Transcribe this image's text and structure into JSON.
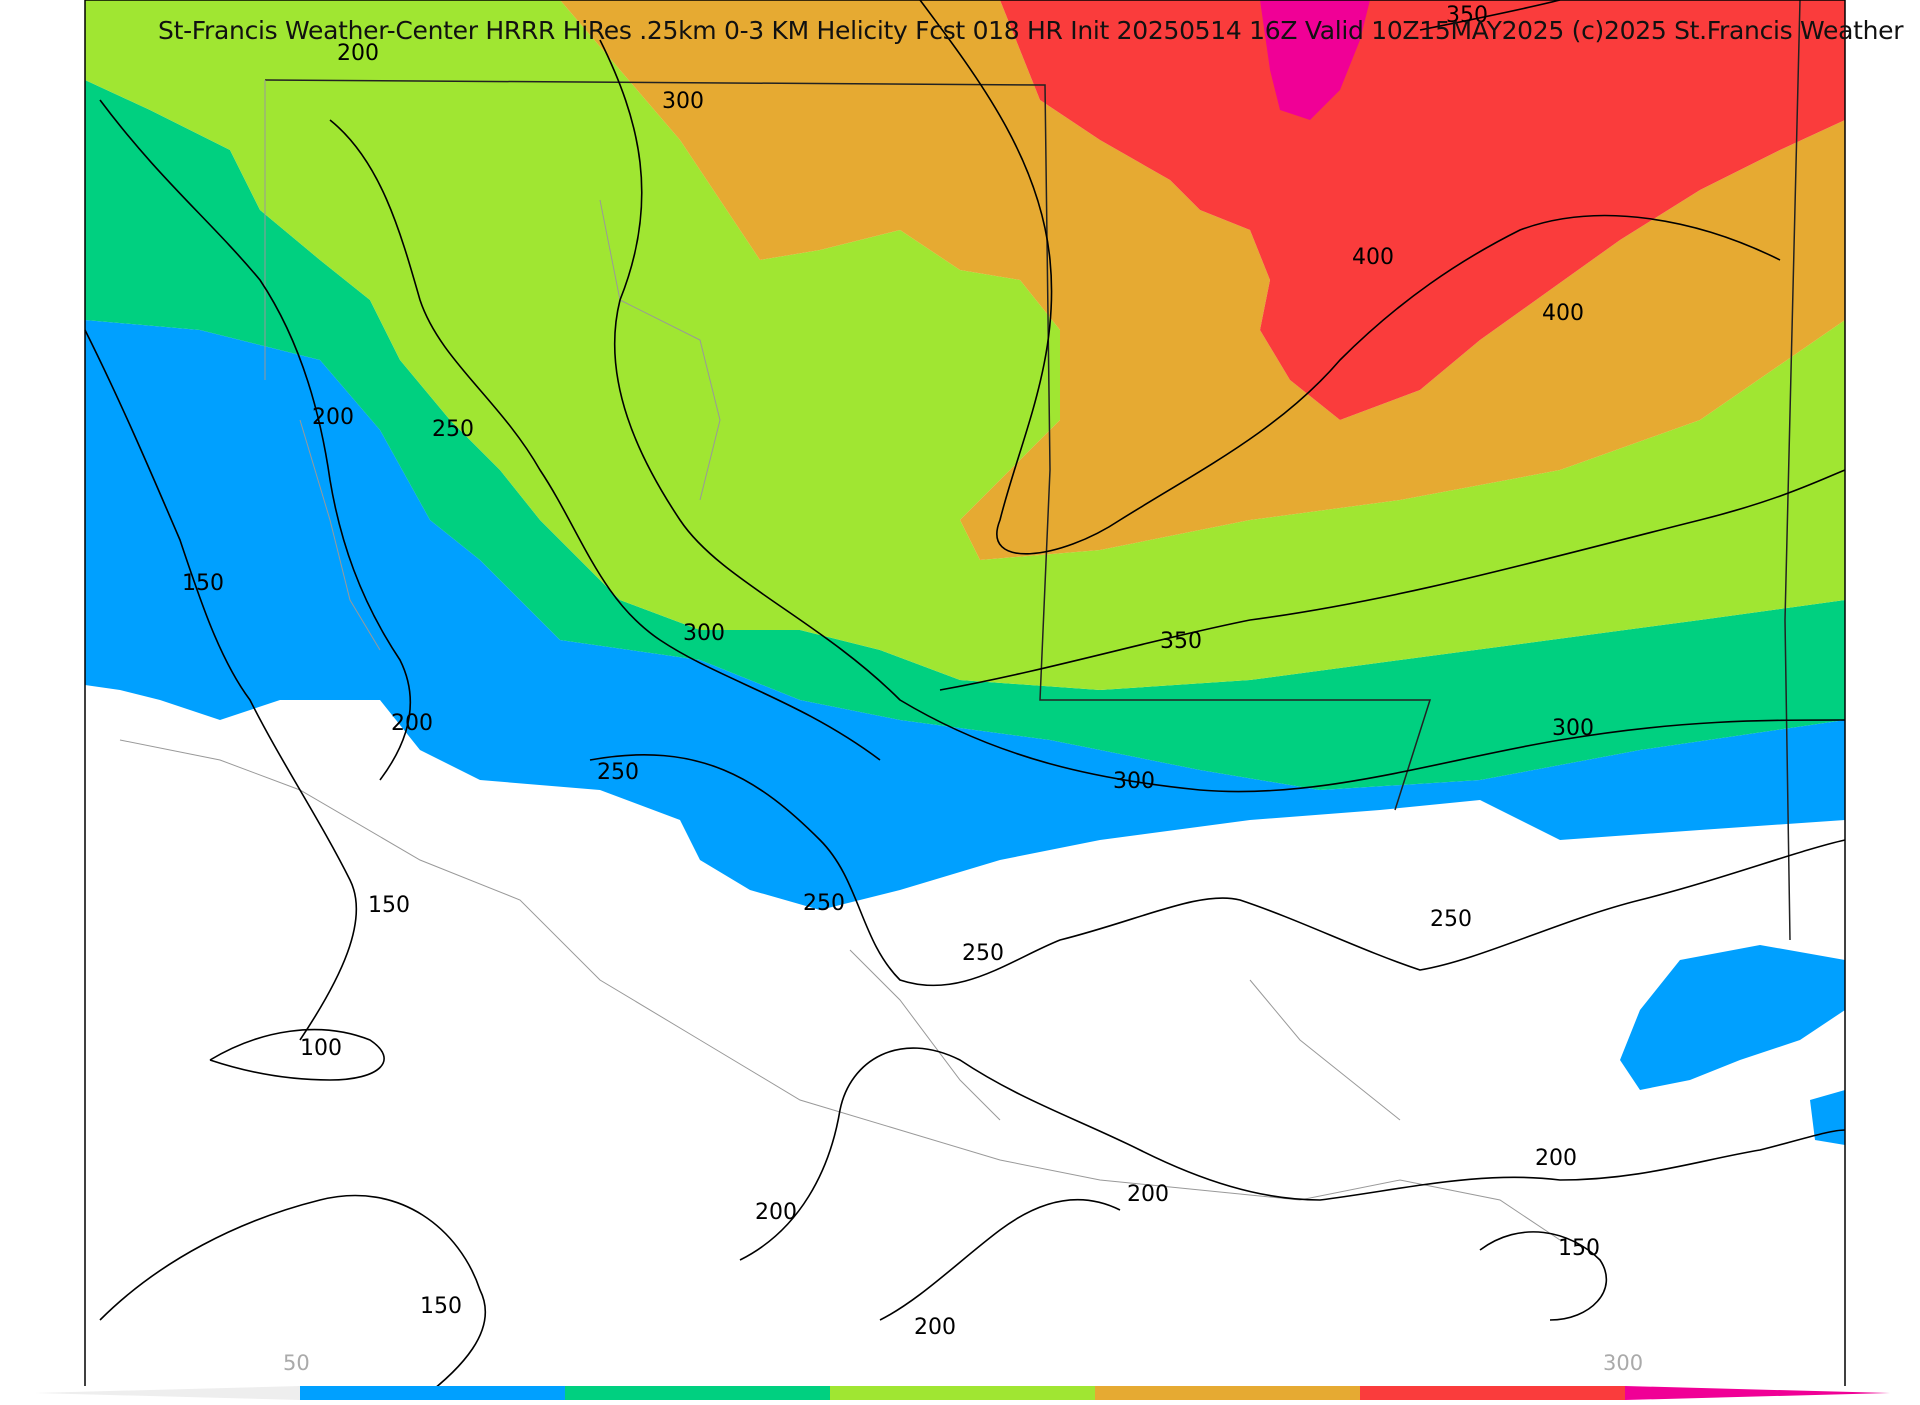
{
  "title": "St-Francis Weather-Center HRRR HiRes .25km 0-3 KM Helicity Fcst 018 HR Init 20250514 16Z  Valid 10Z15MAY2025   (c)2025 St.Francis Weather",
  "colors": {
    "band_150": "#00a0ff",
    "band_200": "#00d080",
    "band_250": "#a0e632",
    "band_300": "#e6aa32",
    "band_350": "#fa3c3c",
    "band_400": "#f00096",
    "contour": "#000000",
    "boundary": "#999999"
  },
  "colorbar": {
    "label_low": "50",
    "label_high": "300"
  },
  "contour_labels": [
    {
      "text": "350"
    },
    {
      "text": "200"
    },
    {
      "text": "300"
    },
    {
      "text": "400"
    },
    {
      "text": "400"
    },
    {
      "text": "200"
    },
    {
      "text": "250"
    },
    {
      "text": "150"
    },
    {
      "text": "300"
    },
    {
      "text": "350"
    },
    {
      "text": "200"
    },
    {
      "text": "250"
    },
    {
      "text": "300"
    },
    {
      "text": "300"
    },
    {
      "text": "150"
    },
    {
      "text": "250"
    },
    {
      "text": "250"
    },
    {
      "text": "250"
    },
    {
      "text": "100"
    },
    {
      "text": "200"
    },
    {
      "text": "200"
    },
    {
      "text": "200"
    },
    {
      "text": "150"
    },
    {
      "text": "150"
    },
    {
      "text": "200"
    }
  ]
}
